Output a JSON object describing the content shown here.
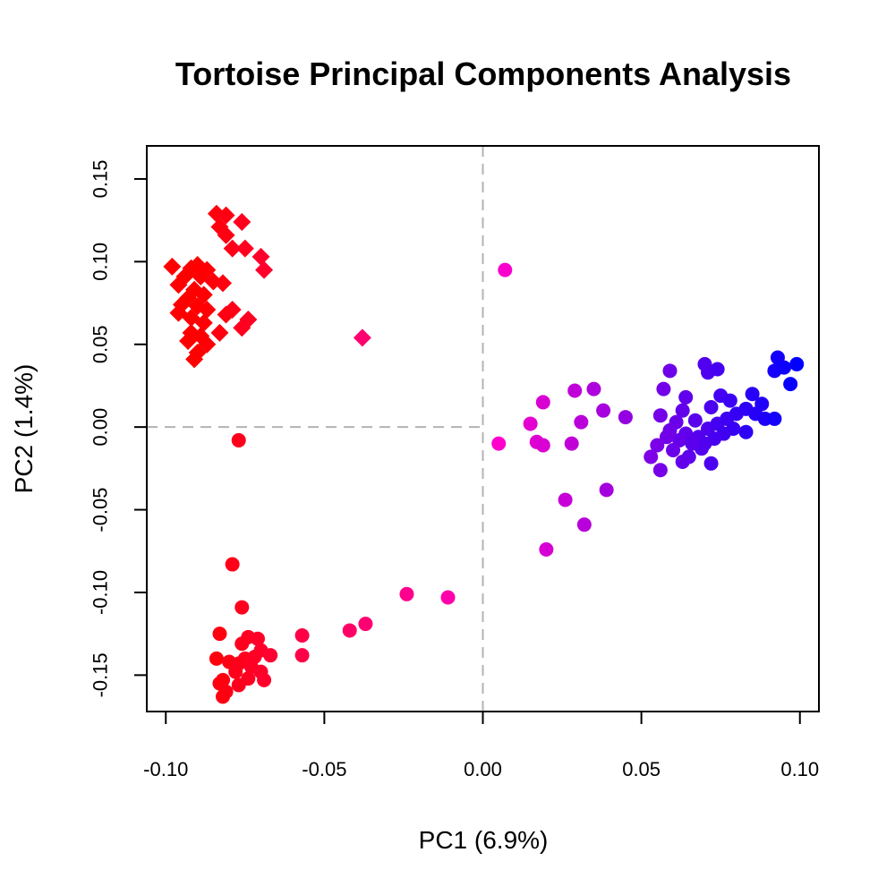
{
  "chart_data": {
    "type": "scatter",
    "title": "Tortoise Principal Components Analysis",
    "xlabel": "PC1 (6.9%)",
    "ylabel": "PC2 (1.4%)",
    "xlim": [
      -0.106,
      0.106
    ],
    "ylim": [
      -0.172,
      0.17
    ],
    "x_ticks": [
      -0.1,
      -0.05,
      0.0,
      0.05,
      0.1
    ],
    "x_tick_labels": [
      "-0.10",
      "-0.05",
      "0.00",
      "0.05",
      "0.10"
    ],
    "y_ticks": [
      -0.15,
      -0.1,
      -0.05,
      0.0,
      0.05,
      0.1,
      0.15
    ],
    "y_tick_labels": [
      "-0.15",
      "-0.10",
      "-0.05",
      "0.00",
      "0.05",
      "0.10",
      "0.15"
    ],
    "grid": false,
    "reference_lines": {
      "vertical": 0.0,
      "horizontal": 0.0,
      "style": "dashed",
      "color": "#b3b3b3"
    },
    "color_scale": {
      "low": "#ff0000",
      "mid": "#ff00cc",
      "high": "#0000ff"
    },
    "series": [
      {
        "marker": "diamond",
        "points": [
          [
            -0.084,
            0.129
          ],
          [
            -0.081,
            0.128
          ],
          [
            -0.076,
            0.124
          ],
          [
            -0.083,
            0.121
          ],
          [
            -0.081,
            0.116
          ],
          [
            -0.079,
            0.108
          ],
          [
            -0.075,
            0.108
          ],
          [
            -0.07,
            0.103
          ],
          [
            -0.069,
            0.095
          ],
          [
            -0.098,
            0.097
          ],
          [
            -0.092,
            0.096
          ],
          [
            -0.09,
            0.098
          ],
          [
            -0.087,
            0.095
          ],
          [
            -0.089,
            0.091
          ],
          [
            -0.094,
            0.091
          ],
          [
            -0.085,
            0.088
          ],
          [
            -0.082,
            0.087
          ],
          [
            -0.096,
            0.086
          ],
          [
            -0.091,
            0.083
          ],
          [
            -0.088,
            0.08
          ],
          [
            -0.093,
            0.078
          ],
          [
            -0.095,
            0.074
          ],
          [
            -0.09,
            0.073
          ],
          [
            -0.087,
            0.071
          ],
          [
            -0.079,
            0.071
          ],
          [
            -0.081,
            0.068
          ],
          [
            -0.096,
            0.069
          ],
          [
            -0.092,
            0.066
          ],
          [
            -0.088,
            0.063
          ],
          [
            -0.074,
            0.065
          ],
          [
            -0.076,
            0.06
          ],
          [
            -0.083,
            0.057
          ],
          [
            -0.092,
            0.057
          ],
          [
            -0.089,
            0.055
          ],
          [
            -0.093,
            0.052
          ],
          [
            -0.087,
            0.05
          ],
          [
            -0.09,
            0.045
          ],
          [
            -0.091,
            0.041
          ],
          [
            -0.038,
            0.054
          ]
        ]
      },
      {
        "marker": "circle",
        "points": [
          [
            0.007,
            0.095
          ],
          [
            -0.077,
            -0.008
          ],
          [
            -0.079,
            -0.083
          ],
          [
            -0.076,
            -0.109
          ],
          [
            -0.083,
            -0.125
          ],
          [
            -0.074,
            -0.127
          ],
          [
            -0.071,
            -0.128
          ],
          [
            -0.076,
            -0.131
          ],
          [
            -0.07,
            -0.135
          ],
          [
            -0.067,
            -0.138
          ],
          [
            -0.072,
            -0.139
          ],
          [
            -0.075,
            -0.14
          ],
          [
            -0.084,
            -0.14
          ],
          [
            -0.08,
            -0.142
          ],
          [
            -0.077,
            -0.143
          ],
          [
            -0.073,
            -0.145
          ],
          [
            -0.078,
            -0.148
          ],
          [
            -0.07,
            -0.148
          ],
          [
            -0.082,
            -0.153
          ],
          [
            -0.074,
            -0.152
          ],
          [
            -0.069,
            -0.153
          ],
          [
            -0.083,
            -0.155
          ],
          [
            -0.077,
            -0.156
          ],
          [
            -0.081,
            -0.16
          ],
          [
            -0.082,
            -0.163
          ],
          [
            -0.057,
            -0.126
          ],
          [
            -0.057,
            -0.138
          ],
          [
            -0.042,
            -0.123
          ],
          [
            -0.037,
            -0.119
          ],
          [
            -0.024,
            -0.101
          ],
          [
            -0.011,
            -0.103
          ],
          [
            0.005,
            -0.01
          ],
          [
            0.015,
            0.002
          ],
          [
            0.017,
            -0.009
          ],
          [
            0.019,
            -0.011
          ],
          [
            0.019,
            0.015
          ],
          [
            0.028,
            -0.01
          ],
          [
            0.029,
            0.022
          ],
          [
            0.031,
            0.003
          ],
          [
            0.035,
            0.023
          ],
          [
            0.038,
            0.01
          ],
          [
            0.026,
            -0.044
          ],
          [
            0.039,
            -0.038
          ],
          [
            0.032,
            -0.059
          ],
          [
            0.02,
            -0.074
          ],
          [
            0.045,
            0.006
          ],
          [
            0.059,
            0.034
          ],
          [
            0.057,
            0.023
          ],
          [
            0.064,
            0.018
          ],
          [
            0.07,
            0.038
          ],
          [
            0.071,
            0.033
          ],
          [
            0.074,
            0.035
          ],
          [
            0.075,
            0.019
          ],
          [
            0.078,
            0.016
          ],
          [
            0.072,
            0.012
          ],
          [
            0.063,
            0.01
          ],
          [
            0.067,
            0.004
          ],
          [
            0.056,
            0.007
          ],
          [
            0.061,
            0.003
          ],
          [
            0.059,
            -0.002
          ],
          [
            0.064,
            -0.004
          ],
          [
            0.068,
            -0.006
          ],
          [
            0.071,
            -0.001
          ],
          [
            0.074,
            0.002
          ],
          [
            0.077,
            0.005
          ],
          [
            0.08,
            0.008
          ],
          [
            0.083,
            0.011
          ],
          [
            0.085,
            0.02
          ],
          [
            0.088,
            0.014
          ],
          [
            0.086,
            0.008
          ],
          [
            0.089,
            0.005
          ],
          [
            0.092,
            0.005
          ],
          [
            0.083,
            -0.003
          ],
          [
            0.079,
            -0.001
          ],
          [
            0.076,
            -0.004
          ],
          [
            0.073,
            -0.007
          ],
          [
            0.07,
            -0.01
          ],
          [
            0.066,
            -0.009
          ],
          [
            0.062,
            -0.008
          ],
          [
            0.058,
            -0.006
          ],
          [
            0.055,
            -0.011
          ],
          [
            0.06,
            -0.014
          ],
          [
            0.065,
            -0.018
          ],
          [
            0.069,
            -0.013
          ],
          [
            0.072,
            -0.022
          ],
          [
            0.063,
            -0.021
          ],
          [
            0.056,
            -0.026
          ],
          [
            0.053,
            -0.018
          ],
          [
            0.066,
            -0.01
          ],
          [
            0.093,
            0.042
          ],
          [
            0.092,
            0.034
          ],
          [
            0.095,
            0.036
          ],
          [
            0.099,
            0.038
          ],
          [
            0.097,
            0.026
          ]
        ]
      }
    ]
  }
}
